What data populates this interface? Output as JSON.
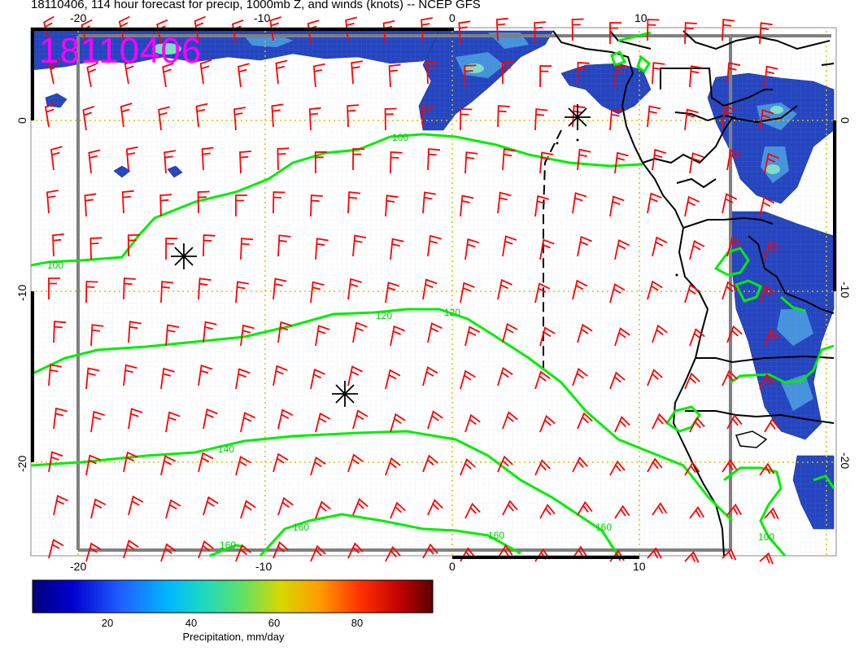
{
  "title": "18110406, 114 hour forecast for precip, 1000mb Z, and winds (knots) -- NCEP GFS",
  "stamp": "18110406",
  "axes": {
    "top_lon_ticks": [
      "-20",
      "-10",
      "0",
      "10"
    ],
    "bottom_lon_ticks": [
      "-20",
      "-10",
      "0",
      "10"
    ],
    "left_lat_ticks": [
      "0",
      "-10",
      "-20"
    ],
    "right_lat_ticks": [
      "0",
      "-10",
      "-20"
    ]
  },
  "contours": {
    "labels": [
      "100",
      "100",
      "120",
      "120",
      "140",
      "160",
      "160",
      "160",
      "160",
      "100"
    ]
  },
  "colorbar": {
    "label": "Precipitation, mm/day",
    "ticks": [
      "20",
      "40",
      "60",
      "80"
    ]
  },
  "colors": {
    "precip_light": "#1f3fb0",
    "precip_mid": "#3b7ad8",
    "precip_high": "#5fd0c8",
    "contour": "#00ee00",
    "barb": "#ff0000",
    "grid": "#d4c400",
    "border": "#000000",
    "stamp": "#ff00ff"
  },
  "markers": {
    "type": "asterisk-marker",
    "count": 3
  }
}
